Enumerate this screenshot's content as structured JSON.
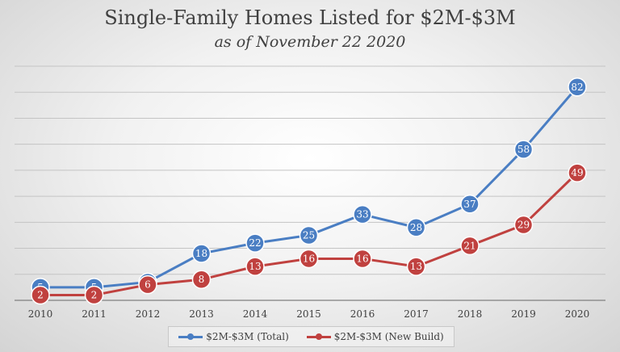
{
  "chart_data": {
    "type": "line",
    "title": "Single-Family Homes Listed for $2M-$3M",
    "subtitle": "as of November 22 2020",
    "categories": [
      "2010",
      "2011",
      "2012",
      "2013",
      "2014",
      "2015",
      "2016",
      "2017",
      "2018",
      "2019",
      "2020"
    ],
    "series": [
      {
        "name": "$2M-$3M (Total)",
        "color": "#4a7ec3",
        "values": [
          5,
          5,
          7,
          18,
          22,
          25,
          33,
          28,
          37,
          58,
          82
        ]
      },
      {
        "name": "$2M-$3M (New Build)",
        "color": "#c0413f",
        "values": [
          2,
          2,
          6,
          8,
          13,
          16,
          16,
          13,
          21,
          29,
          49
        ]
      }
    ],
    "ylim": [
      0,
      90
    ],
    "gridlines": true,
    "xlabel": "",
    "ylabel": "",
    "legend_position": "bottom"
  }
}
